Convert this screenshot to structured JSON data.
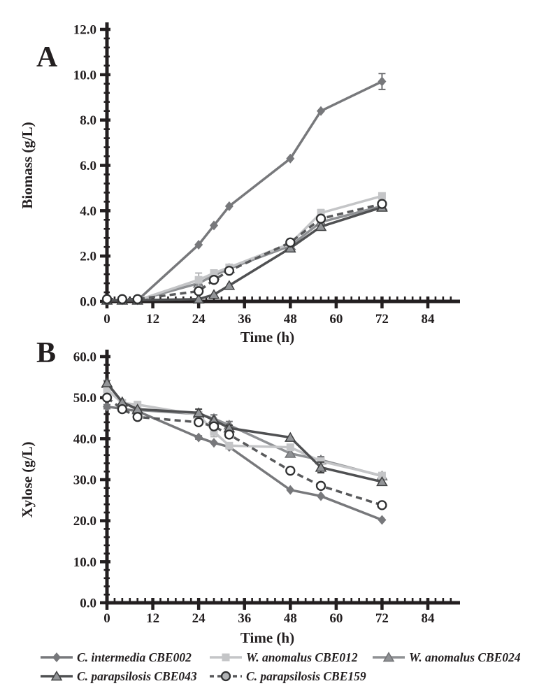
{
  "figure": {
    "background": "#ffffff",
    "text_color": "#231f20",
    "axis_color": "#231f20"
  },
  "chart_data": [
    {
      "type": "line",
      "panel_label": "A",
      "xlabel": "Time (h)",
      "ylabel": "Biomass (g/L)",
      "xlim": [
        0,
        84
      ],
      "ylim": [
        0,
        12
      ],
      "x_major_step": 12,
      "x_minor_step": 2,
      "y_major_step": 2,
      "y_minor_step": 0.4,
      "grid": false,
      "x": [
        0,
        4,
        8,
        24,
        28,
        32,
        48,
        56,
        72
      ],
      "series": [
        {
          "name": "C. intermedia CBE002",
          "marker": "diamond",
          "line": "solid",
          "color": "#77787b",
          "marker_fill": "#77787b",
          "marker_edge": "#6d6e71",
          "values": [
            0.05,
            0.05,
            0.05,
            2.5,
            3.35,
            4.2,
            6.3,
            8.4,
            9.7
          ],
          "err": [
            0,
            0,
            0,
            0,
            0,
            0,
            0,
            0,
            0.35
          ]
        },
        {
          "name": "W. anomalus CBE012",
          "marker": "square",
          "line": "solid",
          "color": "#c4c5c7",
          "marker_fill": "#c4c5c7",
          "marker_edge": "#b4b5b7",
          "values": [
            0.05,
            0.05,
            0.05,
            0.95,
            1.25,
            1.5,
            2.55,
            3.9,
            4.65
          ],
          "err": [
            0,
            0,
            0,
            0.3,
            0,
            0,
            0,
            0.15,
            0
          ]
        },
        {
          "name": "W. anomalus CBE024",
          "marker": "triangle",
          "line": "solid",
          "color": "#8f9194",
          "marker_fill": "#8f9194",
          "marker_edge": "#717275",
          "values": [
            0.05,
            0.05,
            0.05,
            0.8,
            1.15,
            1.45,
            2.45,
            3.5,
            4.2
          ],
          "err": [
            0,
            0,
            0,
            0,
            0,
            0,
            0,
            0,
            0
          ]
        },
        {
          "name": "C. parapsilosis CBE043",
          "marker": "triangle",
          "line": "solid",
          "color": "#4f5052",
          "marker_fill": "#939598",
          "marker_edge": "#3f4041",
          "values": [
            0.05,
            0.05,
            0.05,
            0.1,
            0.3,
            0.7,
            2.35,
            3.3,
            4.15
          ],
          "err": [
            0,
            0,
            0,
            0,
            0,
            0,
            0,
            0,
            0
          ]
        },
        {
          "name": "C. parapsilosis CBE159",
          "marker": "circle",
          "line": "dashed",
          "color": "#58595b",
          "marker_fill": "#ffffff",
          "marker_edge": "#2f3031",
          "legend_marker_fill": "#b1b3b5",
          "values": [
            0.1,
            0.1,
            0.1,
            0.45,
            0.95,
            1.35,
            2.6,
            3.65,
            4.3
          ],
          "err": [
            0,
            0,
            0,
            0,
            0,
            0,
            0,
            0,
            0
          ]
        }
      ]
    },
    {
      "type": "line",
      "panel_label": "B",
      "xlabel": "Time (h)",
      "ylabel": "Xylose (g/L)",
      "xlim": [
        0,
        84
      ],
      "ylim": [
        0,
        60
      ],
      "x_major_step": 12,
      "x_minor_step": 2,
      "y_major_step": 10,
      "y_minor_step": 2,
      "grid": false,
      "x": [
        0,
        4,
        8,
        24,
        28,
        32,
        48,
        56,
        72
      ],
      "series": [
        {
          "name": "C. intermedia CBE002",
          "marker": "diamond",
          "line": "solid",
          "color": "#77787b",
          "marker_fill": "#77787b",
          "marker_edge": "#6d6e71",
          "values": [
            47.8,
            47.3,
            46.7,
            40.3,
            39.0,
            38.0,
            27.5,
            26.0,
            20.2
          ],
          "err": [
            0.5,
            0,
            0,
            0.4,
            0,
            0,
            0,
            0,
            0
          ]
        },
        {
          "name": "W. anomalus CBE012",
          "marker": "square",
          "line": "solid",
          "color": "#c4c5c7",
          "marker_fill": "#c4c5c7",
          "marker_edge": "#b4b5b7",
          "values": [
            52.0,
            48.7,
            48.3,
            45.8,
            41.7,
            38.3,
            37.9,
            34.5,
            31.0
          ],
          "err": [
            0,
            0,
            0,
            0,
            1.2,
            0,
            0,
            0,
            0.6
          ]
        },
        {
          "name": "W. anomalus CBE024",
          "marker": "triangle",
          "line": "solid",
          "color": "#8f9194",
          "marker_fill": "#8f9194",
          "marker_edge": "#717275",
          "values": [
            53.4,
            49.0,
            47.0,
            46.0,
            44.9,
            43.3,
            36.4,
            34.8,
            30.9
          ],
          "err": [
            0.8,
            0,
            0,
            0,
            0.9,
            0.9,
            0,
            0.8,
            0.7
          ]
        },
        {
          "name": "C. parapsilosis CBE043",
          "marker": "triangle",
          "line": "solid",
          "color": "#4f5052",
          "marker_fill": "#939598",
          "marker_edge": "#3f4041",
          "values": [
            53.6,
            48.9,
            47.2,
            46.3,
            44.5,
            42.6,
            40.3,
            33.0,
            29.5
          ],
          "err": [
            0,
            0,
            0,
            0.9,
            0,
            0.7,
            0,
            1.3,
            0
          ]
        },
        {
          "name": "C. parapsilosis CBE159",
          "marker": "circle",
          "line": "dashed",
          "color": "#58595b",
          "marker_fill": "#ffffff",
          "marker_edge": "#2f3031",
          "legend_marker_fill": "#b1b3b5",
          "values": [
            50.0,
            47.2,
            45.3,
            44.0,
            43.0,
            41.0,
            32.2,
            28.5,
            23.8
          ],
          "err": [
            0,
            0,
            0,
            0,
            0,
            0.8,
            0,
            0,
            0
          ]
        }
      ]
    }
  ],
  "legend": {
    "rows": [
      [
        "C. intermedia CBE002",
        "W. anomalus CBE012",
        "W. anomalus CBE024"
      ],
      [
        "C. parapsilosis CBE043",
        "C. parapsilosis CBE159"
      ]
    ]
  }
}
